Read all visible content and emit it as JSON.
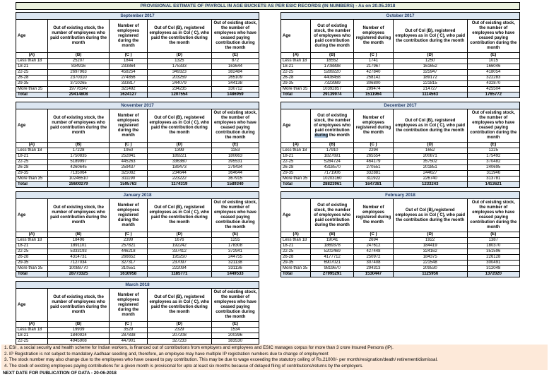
{
  "title": "PROVISIONAL ESTIMATE OF PAYROLL IN AGE BUCKETS AS PER ESIC RECORDS (IN NUMBERS) - As on 20.05.2018",
  "colors": {
    "title_bg": "#ebf1de",
    "band_bg": "#dce6f1",
    "note_bg": "#fde9d9",
    "highlight": "#a9c4de",
    "heading_text": "#1f3864"
  },
  "column_letters": [
    "(A)",
    "(B)",
    "(C )",
    "(D)",
    "(E)"
  ],
  "age_rows": [
    "Less than 18",
    "18-21",
    "22-25",
    "26-28",
    "29-35",
    "More than 35"
  ],
  "total_label": "Total",
  "tables": [
    {
      "month": "September 2017",
      "headers": [
        "Age",
        "Out of existing stock, the number of employees who paid contribution during the month",
        "Number of employees registered during the month",
        "Out of Col (B), registered employees as in Col ( C), who paid the contribution during the month",
        "Out of existing stock, the number of employees  who have ceased paying contribution during the month"
      ],
      "rows": [
        [
          25207,
          1844,
          1325,
          872
        ],
        [
          834916,
          233864,
          175333,
          163644
        ],
        [
          2697963,
          458254,
          349323,
          382484
        ],
        [
          2370310,
          274856,
          203259,
          265109
        ],
        [
          3710265,
          333817,
          244079,
          344138
        ],
        [
          19776147,
          321492,
          234235,
          330712
        ]
      ],
      "total": [
        29414808,
        1624127,
        1207554,
        1486959
      ]
    },
    {
      "month": "October 2017",
      "headers": [
        "Age",
        "Out of existing stock, the number of employees who paid contribution during the month",
        "Number of employees registered during the month",
        "Out of Col (B),  registered employees as in Col ( C), who paid the contribution during the month",
        "Out of existing stock, the number of employees  who have ceased paying contribution during the month"
      ],
      "rows": [
        [
          16552,
          1741,
          1250,
          1015
        ],
        [
          1708898,
          217967,
          161652,
          166046
        ],
        [
          5289220,
          427840,
          325947,
          418054
        ],
        [
          4408458,
          258142,
          189172,
          322283
        ],
        [
          7323989,
          306800,
          221815,
          432870
        ],
        [
          10392857,
          299474,
          214727,
          425504
        ]
      ],
      "total": [
        29139974,
        1511964,
        1114563,
        1765772
      ]
    },
    {
      "month": "November 2017",
      "headers": [
        "Age",
        "Out of existing stock, the number of employees who paid contribution during the month",
        "Number of employees registered during the month",
        "Out of Col (B), registered employees as in Col ( C), who paid the contribution during the month",
        "Out of existing stock, the number of employees  who have ceased paying contribution during the month"
      ],
      "rows": [
        [
          17228,
          1950,
          1399,
          1153
        ],
        [
          1750835,
          252841,
          189221,
          180663
        ],
        [
          5189997,
          445263,
          336360,
          395531
        ],
        [
          4260645,
          259437,
          189473,
          279434
        ],
        [
          7135064,
          325082,
          234644,
          364644
        ],
        [
          10246510,
          311190,
          223222,
          367915
        ]
      ],
      "total": [
        28600279,
        1595763,
        1174319,
        1589340
      ]
    },
    {
      "month": "December 2017",
      "headers": [
        "Age",
        "Out of existing stock, the number of employees who paid contribution during the month",
        "Number of employees registered during the month",
        "Out of Col (B), registered employees as in Col ( C), who paid the contribution during the month",
        "Out of existing stock, the number of employees  who have ceased paying contribution during the month"
      ],
      "highlight": {
        "col": 1,
        "word": "during"
      },
      "rows": [
        [
          17910,
          2294,
          1652,
          1225
        ],
        [
          1827691,
          265554,
          200871,
          175492
        ],
        [
          5284724,
          464179,
          357502,
          370482
        ],
        [
          4318570,
          270551,
          201851,
          240695
        ],
        [
          7171906,
          332881,
          244627,
          311946
        ],
        [
          10203160,
          311922,
          226740,
          313781
        ]
      ],
      "total": [
        28823961,
        1647381,
        1233243,
        1413621
      ]
    },
    {
      "month": "January 2018",
      "headers": [
        "Age",
        "Out of existing stock, the number of employees who paid contribution during the month",
        "Number of employees registered during the month",
        "Out of Col (B), registered employees as in Col ( C), who paid the contribution during the month",
        "Out of existing stock, the number of employees  who have ceased paying contribution during the month"
      ],
      "rows": [
        [
          18496,
          2399,
          1676,
          1255
        ],
        [
          1891101,
          257821,
          192242,
          178308
        ],
        [
          5333193,
          446218,
          337412,
          372941
        ],
        [
          4314731,
          266652,
          195250,
          244755
        ],
        [
          7127034,
          327317,
          237097,
          321138
        ],
        [
          10088770,
          310551,
          222094,
          331136
        ]
      ],
      "total": [
        28773325,
        1610958,
        1185771,
        1449533
      ]
    },
    {
      "month": "February 2018",
      "headers": [
        "Age",
        "Out of existing stock, the number of employees who paid contribution during the month",
        "Number of employees registered during the month",
        "Out of Col (B),registered employees as in Col ( C), who paid the contribution during the month",
        "Out of existing stock, the number of employees  who have ceased paying contribution during the month"
      ],
      "rows": [
        [
          19041,
          2694,
          1922,
          1387
        ],
        [
          1869378,
          247612,
          184419,
          180370
        ],
        [
          5202469,
          427448,
          324162,
          351596
        ],
        [
          4177712,
          250972,
          184375,
          226128
        ],
        [
          6907021,
          307408,
          221548,
          300491
        ],
        [
          9819670,
          294313,
          209530,
          312048
        ]
      ],
      "total": [
        27995291,
        1530447,
        1125956,
        1372020
      ]
    },
    {
      "month": "March 2018",
      "headers": [
        "Age",
        "Out of existing stock, the number of employees who paid contribution during the month",
        "Number of employees registered during the month",
        "Out of Col (B), registered employees as in Col ( C), who paid the contribution during the month",
        "Out of existing stock, the number of employees  who have ceased paying contribution during the month"
      ],
      "rows": [
        [
          19939,
          3529,
          2329,
          1534
        ],
        [
          1840924,
          287838,
          207208,
          200396
        ],
        [
          4945908,
          447901,
          327233,
          383530
        ],
        [
          3919567,
          265187,
          184460,
          242942
        ],
        [
          6448418,
          317136,
          214187,
          308541
        ],
        [
          9149863,
          300177,
          196621,
          297617
        ]
      ],
      "total": [
        26324619,
        1621768,
        1132038,
        1434560
      ]
    }
  ],
  "footnotes": [
    "1. ESI , a social security and health scheme for Indian workers, is financed out of contributions from employers and employees and ESIC manages corpus for more than 3 crore Insured Persons (IP).",
    "2. IP Registration is not subject to mandatory Aadhaar seeding and, therefore, an employee may have multiple IP registration numbers due to change of employment",
    "3. The stock number may also change due to the employees who have ceased to pay contribution. This may  be due to wage exceeding the statutory ceiling of  Rs.21000/- per month/resignation/death/ retirement/dismissal.",
    "4. The stock of existing employees paying contributions for a given month is provisional for upto at least six months because of delayed filing of contributions/returns by the employers."
  ],
  "next_date": "NEXT DATE FOR PUBLICATION OF DATA - 20-06-2018"
}
